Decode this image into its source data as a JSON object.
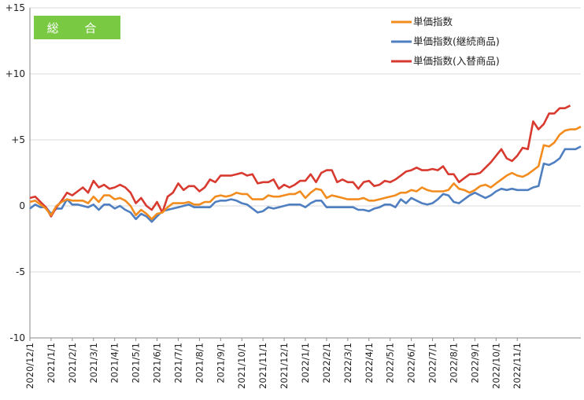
{
  "chart_data": {
    "type": "line",
    "title": "",
    "badge_label": "総 合",
    "badge_color": "#7ac943",
    "xlabel": "",
    "ylabel": "",
    "ylim": [
      -10,
      15
    ],
    "y_ticks": [
      15,
      10,
      5,
      0,
      -5,
      -10
    ],
    "y_tick_labels": [
      "+15",
      "+10",
      "+5",
      "0",
      "-5",
      "-10"
    ],
    "grid": "horizontal",
    "legend_position": "top-right",
    "x_tick_labels": [
      "2020/12/1",
      "2021/1/1",
      "2021/2/1",
      "2021/3/1",
      "2021/4/1",
      "2021/5/1",
      "2021/6/1",
      "2021/7/1",
      "2021/8/1",
      "2021/9/1",
      "2021/10/1",
      "2021/11/1",
      "2021/12/1",
      "2022/1/1",
      "2022/2/1",
      "2022/3/1",
      "2022/4/1",
      "2022/5/1",
      "2022/6/1",
      "2022/7/1",
      "2022/8/1",
      "2022/9/1",
      "2022/10/1",
      "2022/11/1"
    ],
    "points_per_tick": 4,
    "series": [
      {
        "name": "単価指数",
        "color": "#f28c1e",
        "values": [
          0.3,
          0.4,
          0.1,
          -0.2,
          -0.7,
          0.0,
          0.3,
          0.5,
          0.4,
          0.4,
          0.4,
          0.2,
          0.7,
          0.3,
          0.8,
          0.8,
          0.5,
          0.6,
          0.4,
          0.0,
          -0.7,
          -0.3,
          -0.6,
          -1.0,
          -0.6,
          -0.5,
          -0.1,
          0.2,
          0.2,
          0.2,
          0.3,
          0.1,
          0.1,
          0.3,
          0.3,
          0.7,
          0.8,
          0.7,
          0.8,
          1.0,
          0.9,
          0.9,
          0.5,
          0.5,
          0.5,
          0.8,
          0.7,
          0.7,
          0.8,
          0.9,
          0.9,
          1.1,
          0.6,
          1.0,
          1.3,
          1.2,
          0.6,
          0.8,
          0.7,
          0.6,
          0.5,
          0.5,
          0.5,
          0.6,
          0.4,
          0.4,
          0.5,
          0.6,
          0.7,
          0.8,
          1.0,
          1.0,
          1.2,
          1.1,
          1.4,
          1.2,
          1.1,
          1.1,
          1.1,
          1.2,
          1.7,
          1.3,
          1.2,
          1.0,
          1.2,
          1.5,
          1.6,
          1.4,
          1.7,
          2.0,
          2.3,
          2.5,
          2.3,
          2.2,
          2.4,
          2.7,
          3.0,
          4.6,
          4.5,
          4.8,
          5.4,
          5.7,
          5.8,
          5.8,
          6.0
        ]
      },
      {
        "name": "単価指数(継続商品)",
        "color": "#4f7fc0",
        "values": [
          -0.2,
          0.1,
          -0.1,
          -0.1,
          -0.6,
          -0.2,
          -0.2,
          0.5,
          0.1,
          0.1,
          0.0,
          -0.1,
          0.1,
          -0.3,
          0.1,
          0.1,
          -0.2,
          0.0,
          -0.3,
          -0.5,
          -1.0,
          -0.6,
          -0.8,
          -1.2,
          -0.8,
          -0.4,
          -0.3,
          -0.2,
          -0.1,
          0.0,
          0.1,
          -0.1,
          -0.1,
          -0.1,
          -0.1,
          0.3,
          0.4,
          0.4,
          0.5,
          0.4,
          0.2,
          0.1,
          -0.2,
          -0.5,
          -0.4,
          -0.1,
          -0.2,
          -0.1,
          0.0,
          0.1,
          0.1,
          0.1,
          -0.1,
          0.2,
          0.4,
          0.4,
          -0.1,
          -0.1,
          -0.1,
          -0.1,
          -0.1,
          -0.1,
          -0.3,
          -0.3,
          -0.4,
          -0.2,
          -0.1,
          0.1,
          0.1,
          -0.1,
          0.5,
          0.2,
          0.6,
          0.4,
          0.2,
          0.1,
          0.2,
          0.5,
          0.9,
          0.8,
          0.3,
          0.2,
          0.5,
          0.8,
          1.0,
          0.8,
          0.6,
          0.8,
          1.1,
          1.3,
          1.2,
          1.3,
          1.2,
          1.2,
          1.2,
          1.4,
          1.5,
          3.2,
          3.1,
          3.3,
          3.6,
          4.3,
          4.3,
          4.3,
          4.5
        ]
      },
      {
        "name": "単価指数(入替商品)",
        "color": "#d93a30",
        "values": [
          0.6,
          0.7,
          0.3,
          -0.1,
          -0.8,
          -0.1,
          0.4,
          1.0,
          0.8,
          1.1,
          1.4,
          1.0,
          1.9,
          1.4,
          1.6,
          1.3,
          1.4,
          1.6,
          1.4,
          1.0,
          0.2,
          0.6,
          0.0,
          -0.3,
          0.3,
          -0.5,
          0.7,
          1.0,
          1.7,
          1.2,
          1.5,
          1.5,
          1.1,
          1.4,
          2.0,
          1.8,
          2.3,
          2.3,
          2.3,
          2.4,
          2.5,
          2.3,
          2.4,
          1.7,
          1.8,
          1.8,
          2.0,
          1.3,
          1.6,
          1.4,
          1.6,
          1.9,
          1.9,
          2.4,
          1.8,
          2.5,
          2.7,
          2.7,
          1.8,
          2.0,
          1.8,
          1.8,
          1.3,
          1.8,
          1.9,
          1.5,
          1.6,
          1.9,
          1.8,
          2.0,
          2.3,
          2.6,
          2.7,
          2.9,
          2.7,
          2.7,
          2.8,
          2.7,
          3.0,
          2.4,
          2.4,
          1.8,
          2.1,
          2.4,
          2.4,
          2.5,
          2.9,
          3.3,
          3.8,
          4.3,
          3.6,
          3.4,
          3.8,
          4.4,
          4.3,
          6.4,
          5.8,
          6.2,
          7.0,
          7.0,
          7.4,
          7.4,
          7.6
        ]
      }
    ]
  }
}
